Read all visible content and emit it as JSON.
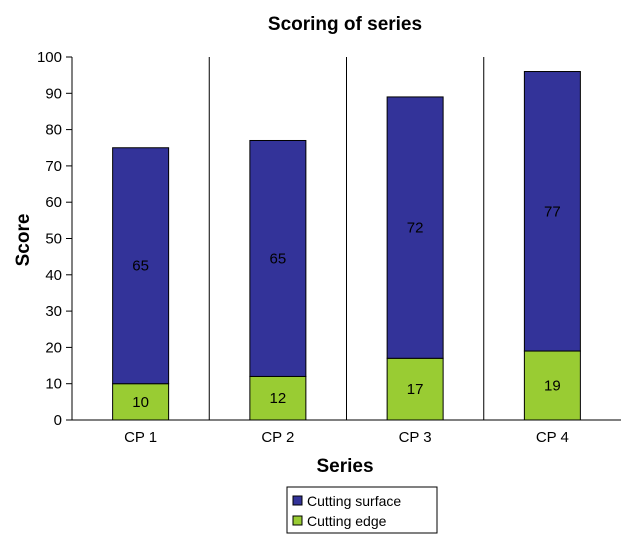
{
  "chart_data": {
    "type": "bar",
    "stacked": true,
    "title": "Scoring of series",
    "xlabel": "Series",
    "ylabel": "Score",
    "categories": [
      "CP 1",
      "CP 2",
      "CP 3",
      "CP 4"
    ],
    "series": [
      {
        "name": "Cutting edge",
        "values": [
          10,
          12,
          17,
          19
        ],
        "color": "#99cc33"
      },
      {
        "name": "Cutting surface",
        "values": [
          65,
          65,
          72,
          77
        ],
        "color": "#333399"
      }
    ],
    "ylim": [
      0,
      100
    ],
    "yticks": [
      0,
      10,
      20,
      30,
      40,
      50,
      60,
      70,
      80,
      90,
      100
    ],
    "grid": false,
    "category_separators": true,
    "legend_position": "bottom"
  }
}
